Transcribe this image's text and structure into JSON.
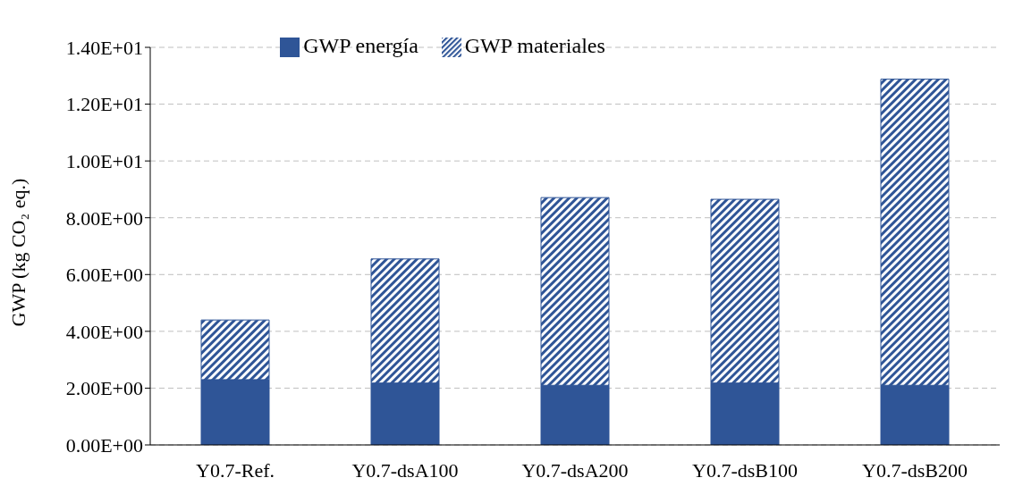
{
  "chart_data": {
    "type": "bar",
    "stacked": true,
    "ylabel": "GWP (kg CO₂ eq.)",
    "categories": [
      "Y0.7-Ref.",
      "Y0.7-dsA100",
      "Y0.7-dsA200",
      "Y0.7-dsB100",
      "Y0.7-dsB200"
    ],
    "series": [
      {
        "name": "GWP energía",
        "color": "#2f5597",
        "values": [
          2.3,
          2.18,
          2.1,
          2.18,
          2.1
        ]
      },
      {
        "name": "GWP materiales",
        "color": "#2f5597",
        "values": [
          2.1,
          4.37,
          6.61,
          6.47,
          10.78
        ]
      }
    ],
    "ylim": [
      0,
      14
    ],
    "yticks": [
      {
        "value": 0,
        "label": "0.00E+00"
      },
      {
        "value": 2,
        "label": "2.00E+00"
      },
      {
        "value": 4,
        "label": "4.00E+00"
      },
      {
        "value": 6,
        "label": "6.00E+00"
      },
      {
        "value": 8,
        "label": "8.00E+00"
      },
      {
        "value": 10,
        "label": "1.00E+01"
      },
      {
        "value": 12,
        "label": "1.20E+01"
      },
      {
        "value": 14,
        "label": "1.40E+01"
      }
    ],
    "grid": "y",
    "legend": "top"
  }
}
